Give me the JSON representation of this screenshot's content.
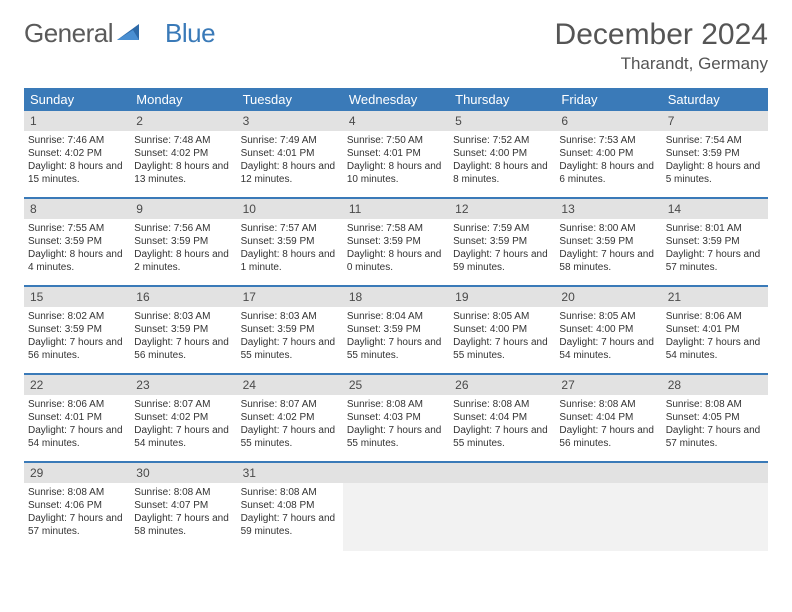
{
  "logo": {
    "text1": "General",
    "text2": "Blue"
  },
  "title": "December 2024",
  "location": "Tharandt, Germany",
  "colors": {
    "header_bg": "#3a7ab8",
    "daynum_bg": "#e2e2e2",
    "text": "#333333"
  },
  "dayNames": [
    "Sunday",
    "Monday",
    "Tuesday",
    "Wednesday",
    "Thursday",
    "Friday",
    "Saturday"
  ],
  "weeks": [
    [
      {
        "n": "1",
        "sunrise": "Sunrise: 7:46 AM",
        "sunset": "Sunset: 4:02 PM",
        "day": "Daylight: 8 hours and 15 minutes."
      },
      {
        "n": "2",
        "sunrise": "Sunrise: 7:48 AM",
        "sunset": "Sunset: 4:02 PM",
        "day": "Daylight: 8 hours and 13 minutes."
      },
      {
        "n": "3",
        "sunrise": "Sunrise: 7:49 AM",
        "sunset": "Sunset: 4:01 PM",
        "day": "Daylight: 8 hours and 12 minutes."
      },
      {
        "n": "4",
        "sunrise": "Sunrise: 7:50 AM",
        "sunset": "Sunset: 4:01 PM",
        "day": "Daylight: 8 hours and 10 minutes."
      },
      {
        "n": "5",
        "sunrise": "Sunrise: 7:52 AM",
        "sunset": "Sunset: 4:00 PM",
        "day": "Daylight: 8 hours and 8 minutes."
      },
      {
        "n": "6",
        "sunrise": "Sunrise: 7:53 AM",
        "sunset": "Sunset: 4:00 PM",
        "day": "Daylight: 8 hours and 6 minutes."
      },
      {
        "n": "7",
        "sunrise": "Sunrise: 7:54 AM",
        "sunset": "Sunset: 3:59 PM",
        "day": "Daylight: 8 hours and 5 minutes."
      }
    ],
    [
      {
        "n": "8",
        "sunrise": "Sunrise: 7:55 AM",
        "sunset": "Sunset: 3:59 PM",
        "day": "Daylight: 8 hours and 4 minutes."
      },
      {
        "n": "9",
        "sunrise": "Sunrise: 7:56 AM",
        "sunset": "Sunset: 3:59 PM",
        "day": "Daylight: 8 hours and 2 minutes."
      },
      {
        "n": "10",
        "sunrise": "Sunrise: 7:57 AM",
        "sunset": "Sunset: 3:59 PM",
        "day": "Daylight: 8 hours and 1 minute."
      },
      {
        "n": "11",
        "sunrise": "Sunrise: 7:58 AM",
        "sunset": "Sunset: 3:59 PM",
        "day": "Daylight: 8 hours and 0 minutes."
      },
      {
        "n": "12",
        "sunrise": "Sunrise: 7:59 AM",
        "sunset": "Sunset: 3:59 PM",
        "day": "Daylight: 7 hours and 59 minutes."
      },
      {
        "n": "13",
        "sunrise": "Sunrise: 8:00 AM",
        "sunset": "Sunset: 3:59 PM",
        "day": "Daylight: 7 hours and 58 minutes."
      },
      {
        "n": "14",
        "sunrise": "Sunrise: 8:01 AM",
        "sunset": "Sunset: 3:59 PM",
        "day": "Daylight: 7 hours and 57 minutes."
      }
    ],
    [
      {
        "n": "15",
        "sunrise": "Sunrise: 8:02 AM",
        "sunset": "Sunset: 3:59 PM",
        "day": "Daylight: 7 hours and 56 minutes."
      },
      {
        "n": "16",
        "sunrise": "Sunrise: 8:03 AM",
        "sunset": "Sunset: 3:59 PM",
        "day": "Daylight: 7 hours and 56 minutes."
      },
      {
        "n": "17",
        "sunrise": "Sunrise: 8:03 AM",
        "sunset": "Sunset: 3:59 PM",
        "day": "Daylight: 7 hours and 55 minutes."
      },
      {
        "n": "18",
        "sunrise": "Sunrise: 8:04 AM",
        "sunset": "Sunset: 3:59 PM",
        "day": "Daylight: 7 hours and 55 minutes."
      },
      {
        "n": "19",
        "sunrise": "Sunrise: 8:05 AM",
        "sunset": "Sunset: 4:00 PM",
        "day": "Daylight: 7 hours and 55 minutes."
      },
      {
        "n": "20",
        "sunrise": "Sunrise: 8:05 AM",
        "sunset": "Sunset: 4:00 PM",
        "day": "Daylight: 7 hours and 54 minutes."
      },
      {
        "n": "21",
        "sunrise": "Sunrise: 8:06 AM",
        "sunset": "Sunset: 4:01 PM",
        "day": "Daylight: 7 hours and 54 minutes."
      }
    ],
    [
      {
        "n": "22",
        "sunrise": "Sunrise: 8:06 AM",
        "sunset": "Sunset: 4:01 PM",
        "day": "Daylight: 7 hours and 54 minutes."
      },
      {
        "n": "23",
        "sunrise": "Sunrise: 8:07 AM",
        "sunset": "Sunset: 4:02 PM",
        "day": "Daylight: 7 hours and 54 minutes."
      },
      {
        "n": "24",
        "sunrise": "Sunrise: 8:07 AM",
        "sunset": "Sunset: 4:02 PM",
        "day": "Daylight: 7 hours and 55 minutes."
      },
      {
        "n": "25",
        "sunrise": "Sunrise: 8:08 AM",
        "sunset": "Sunset: 4:03 PM",
        "day": "Daylight: 7 hours and 55 minutes."
      },
      {
        "n": "26",
        "sunrise": "Sunrise: 8:08 AM",
        "sunset": "Sunset: 4:04 PM",
        "day": "Daylight: 7 hours and 55 minutes."
      },
      {
        "n": "27",
        "sunrise": "Sunrise: 8:08 AM",
        "sunset": "Sunset: 4:04 PM",
        "day": "Daylight: 7 hours and 56 minutes."
      },
      {
        "n": "28",
        "sunrise": "Sunrise: 8:08 AM",
        "sunset": "Sunset: 4:05 PM",
        "day": "Daylight: 7 hours and 57 minutes."
      }
    ],
    [
      {
        "n": "29",
        "sunrise": "Sunrise: 8:08 AM",
        "sunset": "Sunset: 4:06 PM",
        "day": "Daylight: 7 hours and 57 minutes."
      },
      {
        "n": "30",
        "sunrise": "Sunrise: 8:08 AM",
        "sunset": "Sunset: 4:07 PM",
        "day": "Daylight: 7 hours and 58 minutes."
      },
      {
        "n": "31",
        "sunrise": "Sunrise: 8:08 AM",
        "sunset": "Sunset: 4:08 PM",
        "day": "Daylight: 7 hours and 59 minutes."
      },
      {
        "empty": true
      },
      {
        "empty": true
      },
      {
        "empty": true
      },
      {
        "empty": true
      }
    ]
  ]
}
